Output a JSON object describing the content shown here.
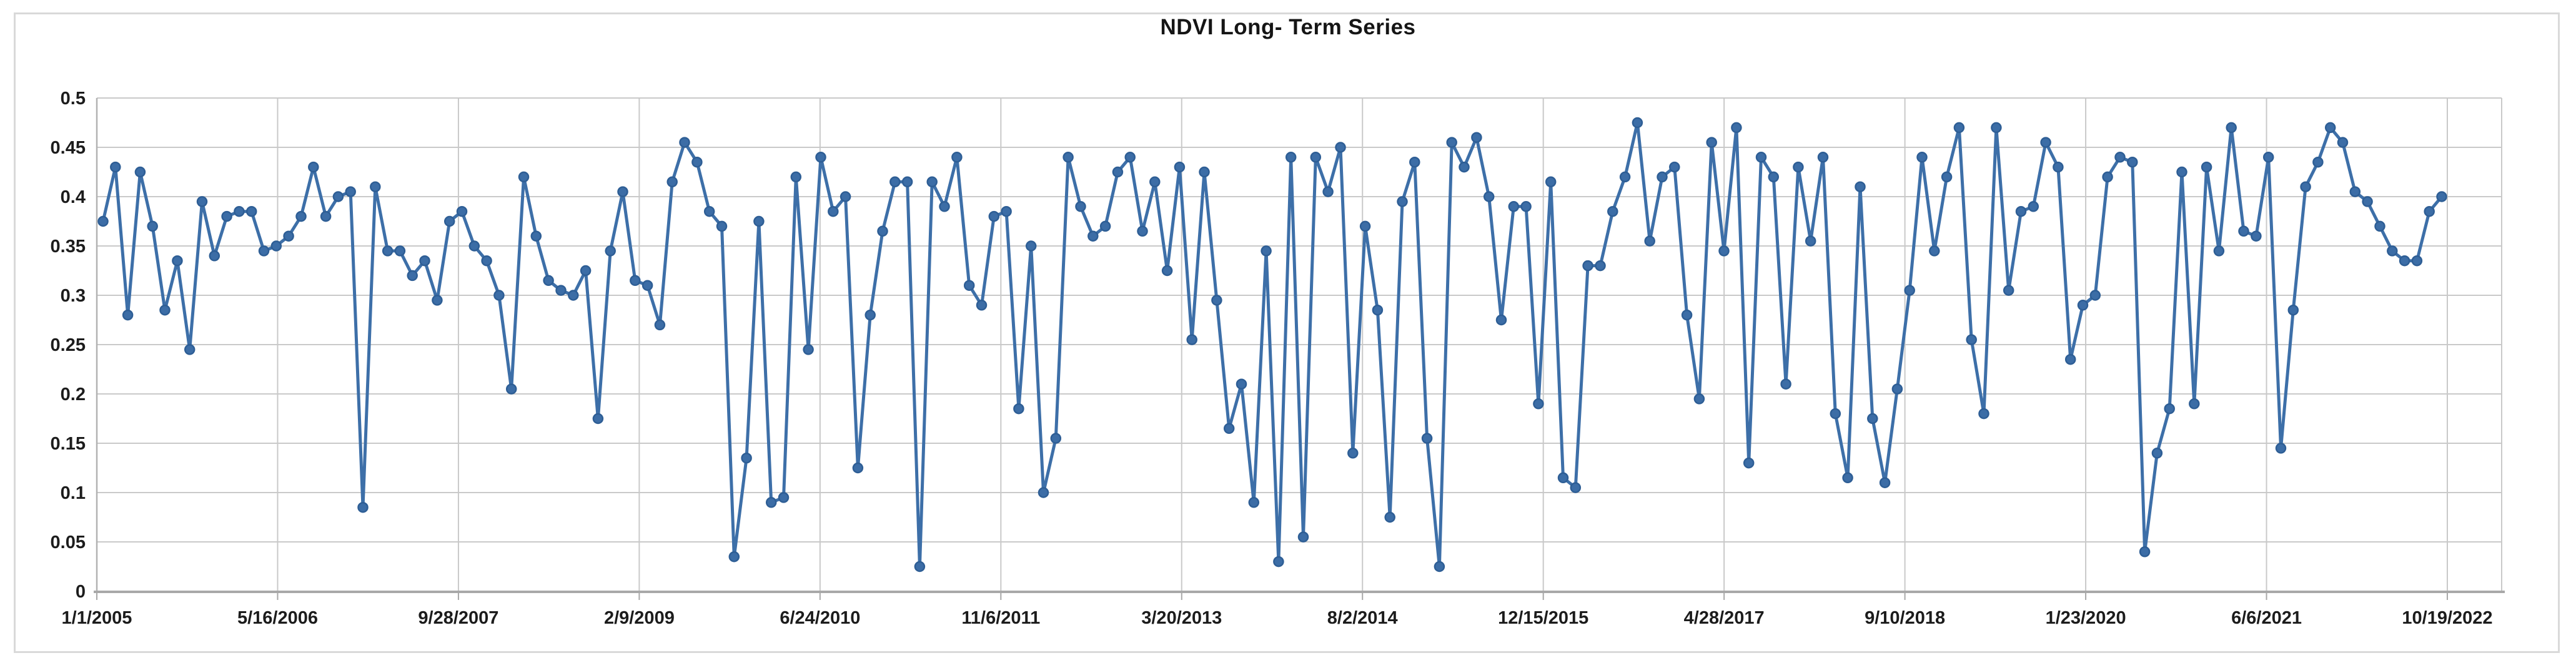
{
  "chart": {
    "title": "NDVI Long- Term Series"
  },
  "chart_data": {
    "type": "line",
    "title": "NDVI Long- Term Series",
    "xlabel": "",
    "ylabel": "",
    "ylim": [
      0,
      0.5
    ],
    "ytick_step": 0.05,
    "ytick_labels": [
      "0",
      "0.05",
      "0.1",
      "0.15",
      "0.2",
      "0.25",
      "0.3",
      "0.35",
      "0.4",
      "0.45",
      "0.5"
    ],
    "grid": true,
    "legend": "none",
    "x_tick_labels": [
      "1/1/2005",
      "5/16/2006",
      "9/28/2007",
      "2/9/2009",
      "6/24/2010",
      "11/6/2011",
      "3/20/2013",
      "8/2/2014",
      "12/15/2015",
      "4/28/2017",
      "9/10/2018",
      "1/23/2020",
      "6/6/2021",
      "10/19/2022"
    ],
    "x_tick_interval_days": 500,
    "series": [
      {
        "name": "NDVI",
        "values": [
          0.375,
          0.43,
          0.28,
          0.425,
          0.37,
          0.285,
          0.335,
          0.245,
          0.395,
          0.34,
          0.38,
          0.385,
          0.385,
          0.345,
          0.35,
          0.36,
          0.38,
          0.43,
          0.38,
          0.4,
          0.405,
          0.085,
          0.41,
          0.345,
          0.345,
          0.32,
          0.335,
          0.295,
          0.375,
          0.385,
          0.35,
          0.335,
          0.3,
          0.205,
          0.42,
          0.36,
          0.315,
          0.305,
          0.3,
          0.325,
          0.175,
          0.345,
          0.405,
          0.315,
          0.31,
          0.27,
          0.415,
          0.455,
          0.435,
          0.385,
          0.37,
          0.035,
          0.135,
          0.375,
          0.09,
          0.095,
          0.42,
          0.245,
          0.44,
          0.385,
          0.4,
          0.125,
          0.28,
          0.365,
          0.415,
          0.415,
          0.025,
          0.415,
          0.39,
          0.44,
          0.31,
          0.29,
          0.38,
          0.385,
          0.185,
          0.35,
          0.1,
          0.155,
          0.44,
          0.39,
          0.36,
          0.37,
          0.425,
          0.44,
          0.365,
          0.415,
          0.325,
          0.43,
          0.255,
          0.425,
          0.295,
          0.165,
          0.21,
          0.09,
          0.345,
          0.03,
          0.44,
          0.055,
          0.44,
          0.405,
          0.45,
          0.14,
          0.37,
          0.285,
          0.075,
          0.395,
          0.435,
          0.155,
          0.025,
          0.455,
          0.43,
          0.46,
          0.4,
          0.275,
          0.39,
          0.39,
          0.19,
          0.415,
          0.115,
          0.105,
          0.33,
          0.33,
          0.385,
          0.42,
          0.475,
          0.355,
          0.42,
          0.43,
          0.28,
          0.195,
          0.455,
          0.345,
          0.47,
          0.13,
          0.44,
          0.42,
          0.21,
          0.43,
          0.355,
          0.44,
          0.18,
          0.115,
          0.41,
          0.175,
          0.11,
          0.205,
          0.305,
          0.44,
          0.345,
          0.42,
          0.47,
          0.255,
          0.18,
          0.47,
          0.305,
          0.385,
          0.39,
          0.455,
          0.43,
          0.235,
          0.29,
          0.3,
          0.42,
          0.44,
          0.435,
          0.04,
          0.14,
          0.185,
          0.425,
          0.19,
          0.43,
          0.345,
          0.47,
          0.365,
          0.36,
          0.44,
          0.145,
          0.285,
          0.41,
          0.435,
          0.47,
          0.455,
          0.405,
          0.395,
          0.37,
          0.345,
          0.335,
          0.335,
          0.385,
          0.4
        ]
      }
    ],
    "colors": {
      "line": "#3d6fa8",
      "marker_fill": "#3c6da6",
      "marker_stroke": "#2e5e95",
      "gridline": "#c9c9c9",
      "axis": "#a8a8a8",
      "text": "#1c1c1c",
      "figure_border": "#d9d9d9"
    }
  }
}
